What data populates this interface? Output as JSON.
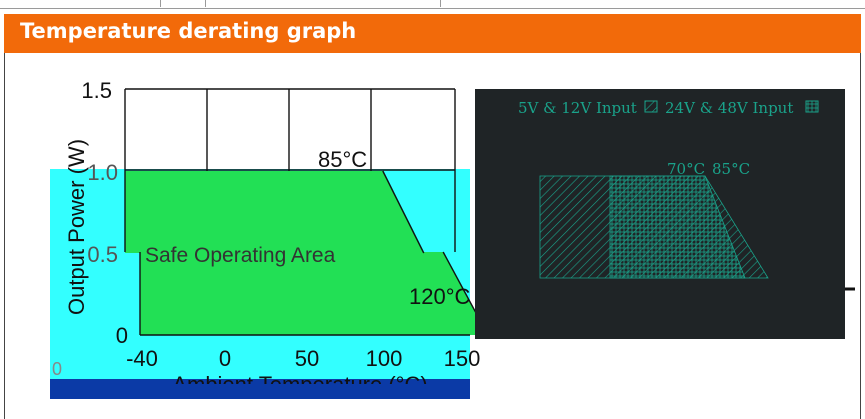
{
  "header": {
    "title": "Temperature derating graph"
  },
  "colors": {
    "header_bg": "#f26a0a",
    "cyan_overlay": "#33ffff",
    "green_area": "#22e055",
    "blue_bar": "#0b3aa6",
    "dark_panel": "#1f2426",
    "teal_text": "#1aa28a"
  },
  "left_chart": {
    "ylabel": "Output Power (W)",
    "xlabel": "Ambient Temperature (°C)",
    "y_ticks": [
      "1.5",
      "1.0",
      "0.5",
      "0"
    ],
    "x_ticks": [
      "-40",
      "0",
      "50",
      "100",
      "150"
    ],
    "area_label": "Safe Operating Area",
    "annotations": {
      "t85": "85°C",
      "t120": "120°C"
    }
  },
  "right_panel": {
    "legend_a": "5V & 12V Input",
    "legend_b": "24V & 48V Input",
    "t70": "70°C",
    "t85": "85°C"
  },
  "chart_data": [
    {
      "type": "area",
      "title": "",
      "xlabel": "Ambient Temperature (°C)",
      "ylabel": "Output Power (W)",
      "xlim": [
        -40,
        150
      ],
      "ylim": [
        0,
        1.5
      ],
      "series": [
        {
          "x": [
            -40,
            85,
            100
          ],
          "values": [
            1.0,
            1.0,
            0.5
          ]
        },
        {
          "x": [
            -40,
            100,
            120
          ],
          "values": [
            0.5,
            0.5,
            0
          ]
        }
      ],
      "annotations": [
        "85°C",
        "120°C",
        "Safe Operating Area"
      ]
    },
    {
      "type": "area",
      "series": [
        {
          "name": "5V & 12V Input"
        },
        {
          "name": "24V & 48V Input"
        }
      ],
      "annotations": [
        "70°C",
        "85°C"
      ]
    }
  ]
}
